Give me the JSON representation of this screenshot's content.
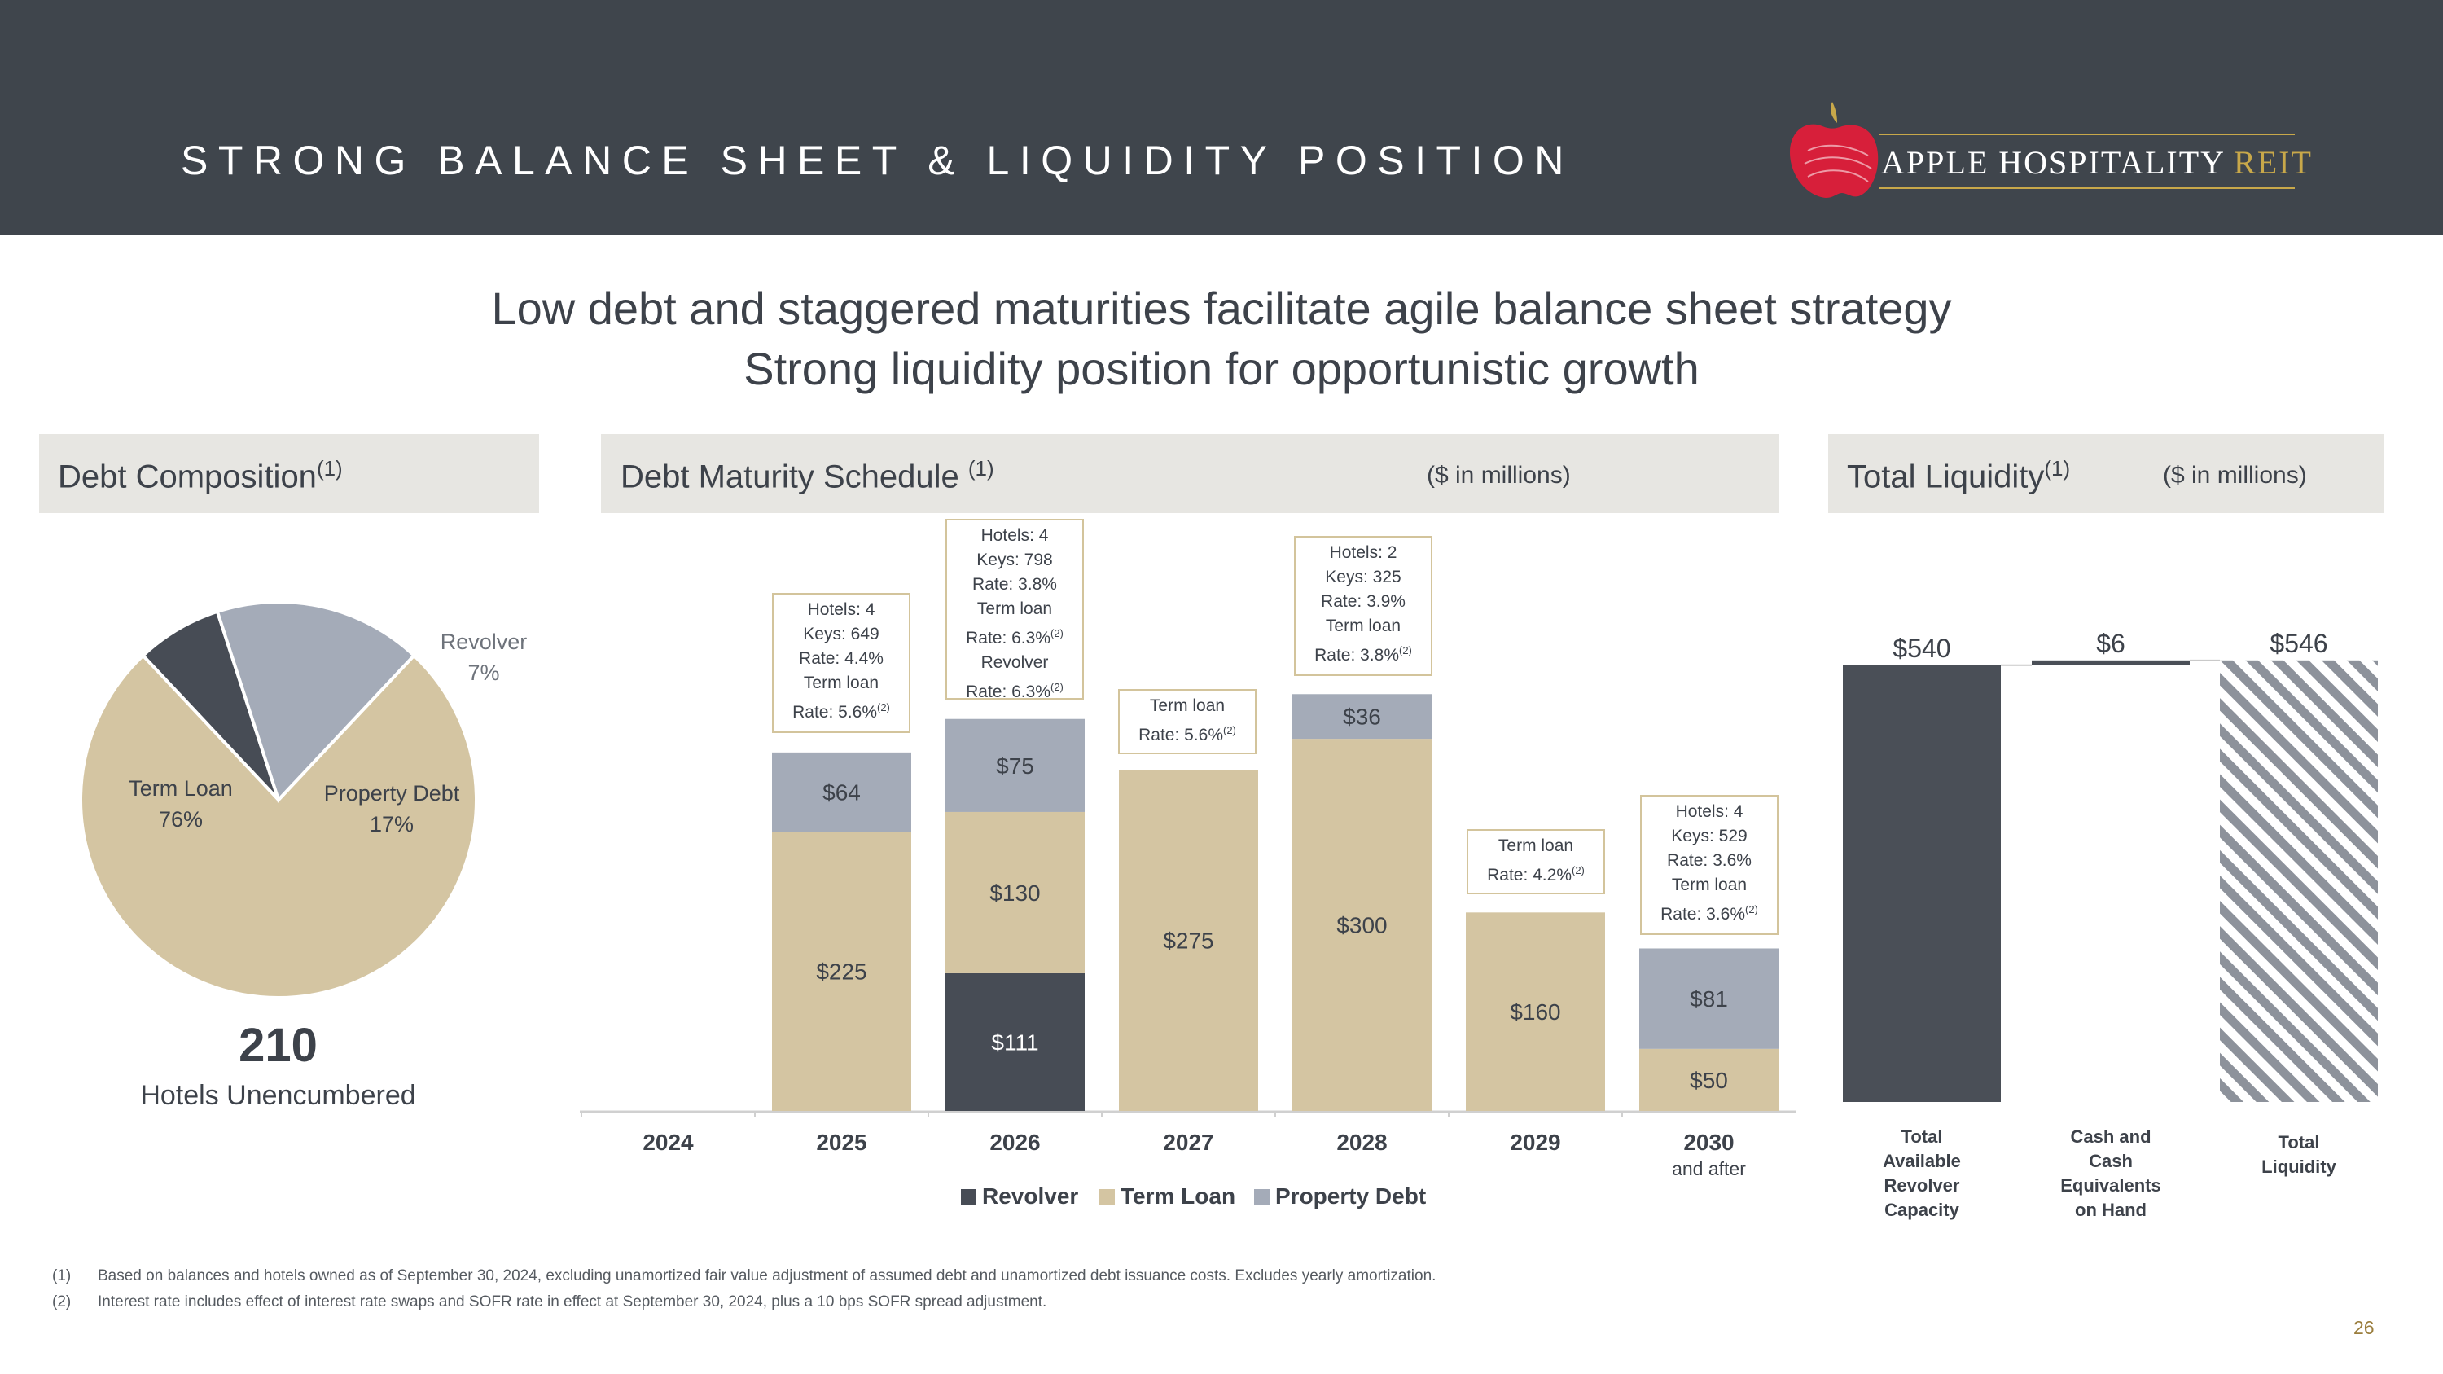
{
  "header": {
    "title": "STRONG BALANCE SHEET & LIQUIDITY POSITION",
    "logo_text": "APPLE HOSPITALITY",
    "logo_suffix": "REIT"
  },
  "headline": {
    "line1": "Low debt and staggered maturities facilitate agile balance sheet strategy",
    "line2": "Strong liquidity position for opportunistic growth"
  },
  "debt_composition": {
    "title": "Debt Composition",
    "title_note": "(1)",
    "unencumbered_count": "210",
    "unencumbered_label": "Hotels Unencumbered"
  },
  "maturity": {
    "title": "Debt Maturity Schedule",
    "title_note": "(1)",
    "units": "($ in millions)",
    "callouts": {
      "y2025": {
        "lines": [
          "Hotels: 4",
          "Keys: 649",
          "Rate: 4.4%",
          "Term loan"
        ],
        "rate": "Rate: 5.6%",
        "note": "(2)"
      },
      "y2026": {
        "lines": [
          "Hotels: 4",
          "Keys: 798",
          "Rate: 3.8%",
          "Term loan"
        ],
        "rate": "Rate: 6.3%",
        "note": "(2)",
        "line5": "Revolver",
        "rate2": "Rate: 6.3%",
        "note2": "(2)"
      },
      "y2027": {
        "lines": [
          "Term loan"
        ],
        "rate": "Rate: 5.6%",
        "note": "(2)"
      },
      "y2028": {
        "lines": [
          "Hotels: 2",
          "Keys: 325",
          "Rate: 3.9%",
          "Term loan"
        ],
        "rate": "Rate: 3.8%",
        "note": "(2)"
      },
      "y2029": {
        "lines": [
          "Term loan"
        ],
        "rate": "Rate: 4.2%",
        "note": "(2)"
      },
      "y2030": {
        "lines": [
          "Hotels: 4",
          "Keys: 529",
          "Rate: 3.6%",
          "Term loan"
        ],
        "rate": "Rate: 3.6%",
        "note": "(2)"
      }
    }
  },
  "liquidity": {
    "title": "Total Liquidity",
    "title_note": "(1)",
    "units": "($ in millions)"
  },
  "chart_data": [
    {
      "type": "pie",
      "title": "Debt Composition",
      "slices": [
        {
          "name": "Term Loan",
          "value": 76,
          "label": "76%",
          "color": "#d4c5a2"
        },
        {
          "name": "Revolver",
          "value": 7,
          "label": "7%",
          "color": "#474c55"
        },
        {
          "name": "Property Debt",
          "value": 17,
          "label": "17%",
          "color": "#a4abb8"
        }
      ]
    },
    {
      "type": "bar",
      "stacked": true,
      "title": "Debt Maturity Schedule",
      "categories": [
        "2024",
        "2025",
        "2026",
        "2027",
        "2028",
        "2029",
        "2030"
      ],
      "category_sublabels": [
        "",
        "",
        "",
        "",
        "",
        "",
        "and after"
      ],
      "series": [
        {
          "name": "Revolver",
          "color": "#474c55",
          "values": [
            0,
            0,
            111,
            0,
            0,
            0,
            0
          ],
          "labels": [
            "",
            "",
            "$111",
            "",
            "",
            "",
            ""
          ]
        },
        {
          "name": "Term Loan",
          "color": "#d4c5a2",
          "values": [
            0,
            225,
            130,
            275,
            300,
            160,
            50
          ],
          "labels": [
            "",
            "$225",
            "$130",
            "$275",
            "$300",
            "$160",
            "$50"
          ]
        },
        {
          "name": "Property Debt",
          "color": "#a4abb8",
          "values": [
            0,
            64,
            75,
            0,
            36,
            0,
            81
          ],
          "labels": [
            "",
            "$64",
            "$75",
            "",
            "$36",
            "",
            "$81"
          ]
        }
      ],
      "ylim": [
        0,
        350
      ],
      "legend": "bottom",
      "units": "($ in millions)"
    },
    {
      "type": "bar",
      "subtype": "waterfall",
      "title": "Total Liquidity",
      "categories": [
        "Total Available Revolver Capacity",
        "Cash and Cash Equivalents on Hand",
        "Total Liquidity"
      ],
      "category_lines": [
        [
          "Total",
          "Available",
          "Revolver",
          "Capacity"
        ],
        [
          "Cash and",
          "Cash",
          "Equivalents",
          "on Hand"
        ],
        [
          "Total",
          "Liquidity"
        ]
      ],
      "values": [
        540,
        6,
        546
      ],
      "labels": [
        "$540",
        "$6",
        "$546"
      ],
      "colors": [
        "#4a4f57",
        "#4a4f57",
        "#8d929b"
      ],
      "ylim": [
        0,
        546
      ],
      "units": "($ in millions)"
    }
  ],
  "footnotes": [
    {
      "num": "(1)",
      "text": "Based on balances and hotels owned as of September 30, 2024, excluding unamortized fair value adjustment of assumed debt and unamortized debt issuance costs. Excludes yearly amortization."
    },
    {
      "num": "(2)",
      "text": "Interest rate includes effect of interest rate swaps and SOFR rate in effect at September 30, 2024, plus a 10 bps SOFR spread adjustment."
    }
  ],
  "page_number": "26"
}
